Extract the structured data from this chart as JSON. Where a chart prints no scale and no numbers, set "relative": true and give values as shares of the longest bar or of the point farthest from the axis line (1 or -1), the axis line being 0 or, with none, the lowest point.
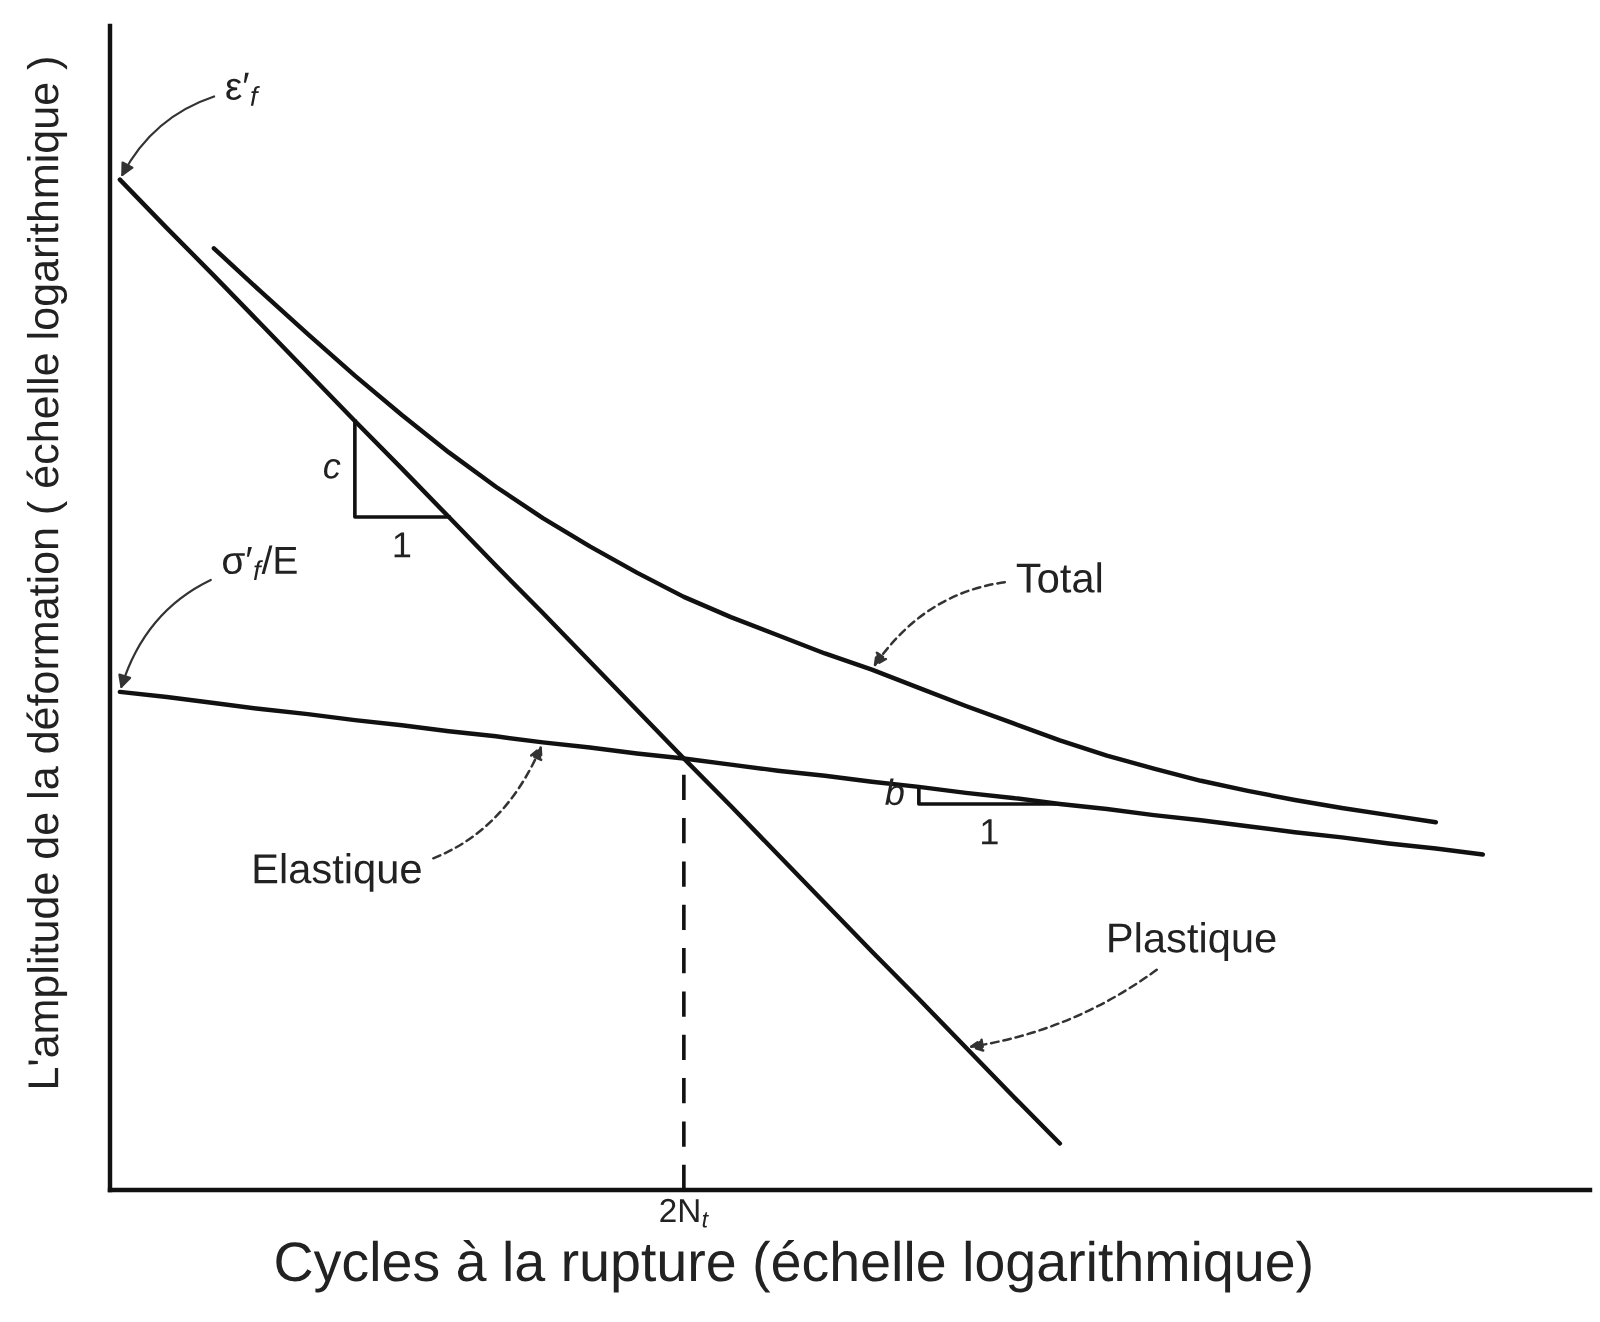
{
  "chart_data": {
    "type": "line",
    "relative": true,
    "xlabel": "Cycles à la rupture (échelle logarithmique)",
    "ylabel": "L'amplitude de la déformation ( échelle logarithmique )",
    "categories": [
      null,
      null,
      null,
      null,
      null,
      null,
      null,
      null,
      null,
      null,
      null,
      null,
      null,
      null,
      null,
      null,
      null,
      null,
      null,
      null,
      null,
      null,
      null,
      null,
      null,
      null,
      null,
      null,
      null,
      null,
      null,
      null
    ],
    "series": [
      {
        "name": "Elastique",
        "color": "#111111",
        "values": [
          0.493,
          0.488,
          0.482,
          0.476,
          0.471,
          0.465,
          0.46,
          0.454,
          0.449,
          0.443,
          0.438,
          0.432,
          0.427,
          0.421,
          0.415,
          0.41,
          0.404,
          0.399,
          0.393,
          0.388,
          0.382,
          0.377,
          0.371,
          0.366,
          0.36,
          0.354,
          0.349,
          0.343,
          0.338,
          0.332,
          null,
          null
        ]
      },
      {
        "name": "Plastique",
        "color": "#111111",
        "values": [
          1.0,
          0.952,
          0.905,
          0.857,
          0.809,
          0.761,
          0.714,
          0.666,
          0.618,
          0.571,
          0.523,
          0.475,
          0.427,
          0.38,
          0.332,
          0.284,
          0.236,
          0.189,
          0.141,
          0.093,
          0.046,
          null,
          null,
          null,
          null,
          null,
          null,
          null,
          null,
          null,
          null,
          null
        ]
      },
      {
        "name": "Total",
        "color": "#111111",
        "values": [
          null,
          null,
          0.932,
          0.889,
          0.847,
          0.806,
          0.767,
          0.73,
          0.696,
          0.665,
          0.637,
          0.611,
          0.587,
          0.567,
          0.549,
          0.531,
          0.515,
          0.497,
          0.479,
          0.462,
          0.445,
          0.43,
          0.417,
          0.405,
          0.395,
          0.386,
          0.378,
          0.371,
          0.364,
          null,
          null,
          null
        ]
      }
    ],
    "annotations": [
      "ε′$_{f}$",
      "σ′$_{f}$/E",
      "c",
      "1",
      "b",
      "1",
      "2N$_{t}$"
    ],
    "marker": "none",
    "line_style": "solid",
    "legend": false
  }
}
